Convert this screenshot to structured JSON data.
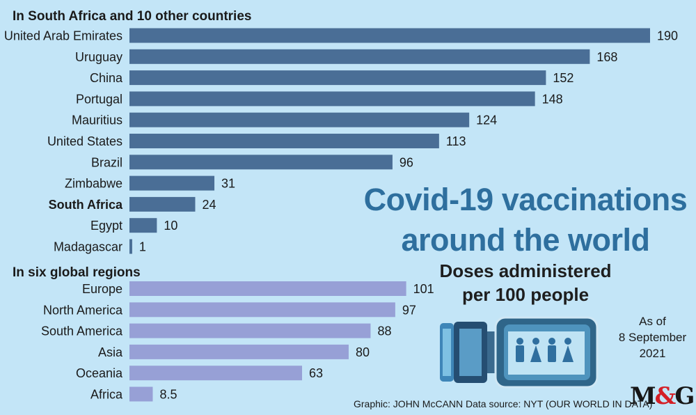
{
  "chart_data": {
    "type": "bar",
    "orientation": "horizontal",
    "title": "Covid-19 vaccinations around the world",
    "subtitle": "Doses administered per 100 people",
    "groups": [
      {
        "title": "In South Africa and 10 other countries",
        "color": "#4a6e96",
        "categories": [
          "United Arab Emirates",
          "Uruguay",
          "China",
          "Portugal",
          "Mauritius",
          "United States",
          "Brazil",
          "Zimbabwe",
          "South Africa",
          "Egypt",
          "Madagascar"
        ],
        "values": [
          190,
          168,
          152,
          148,
          124,
          113,
          96,
          31,
          24,
          10,
          1
        ],
        "value_labels": [
          "190",
          "168",
          "152",
          "148",
          "124",
          "113",
          "96",
          "31",
          "24",
          "10",
          "1"
        ],
        "highlighted": [
          "South Africa"
        ]
      },
      {
        "title": "In six global regions",
        "color": "#97a0d6",
        "categories": [
          "Europe",
          "North America",
          "South America",
          "Asia",
          "Oceania",
          "Africa"
        ],
        "values": [
          101,
          97,
          88,
          80,
          63,
          8.5
        ],
        "value_labels": [
          "101",
          "97",
          "88",
          "80",
          "63",
          "8.5"
        ]
      }
    ],
    "xlim": [
      0,
      190
    ]
  },
  "headline_line1": "Covid-19 vaccinations",
  "headline_line2": "around the world",
  "subheadline_line1": "Doses administered",
  "subheadline_line2": "per 100 people",
  "date_line1": "As of",
  "date_line2": "8 September",
  "date_line3": "2021",
  "credit": "Graphic: JOHN McCANN  Data source: NYT (OUR WORLD IN DATA)",
  "logo": {
    "left": "M",
    "amp": "&",
    "right": "G"
  }
}
